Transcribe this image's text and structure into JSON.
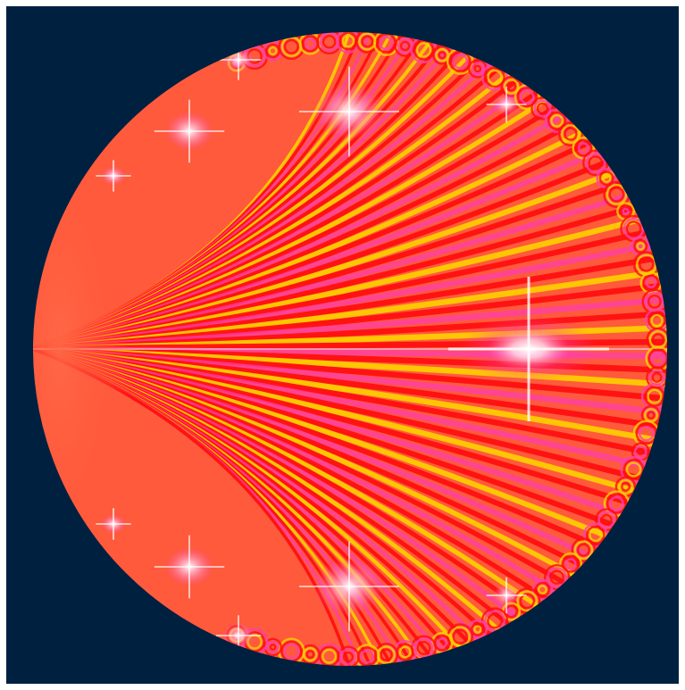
{
  "image": {
    "subject": "fractal-disc",
    "colors": {
      "background": "#002040",
      "base": "#ff5a3c",
      "band_yellow": "#ffcc00",
      "band_red": "#ff1010",
      "band_magenta": "#ff3fae",
      "highlight_white": "#ffffff",
      "highlight_pink": "#ffb8d8"
    }
  }
}
